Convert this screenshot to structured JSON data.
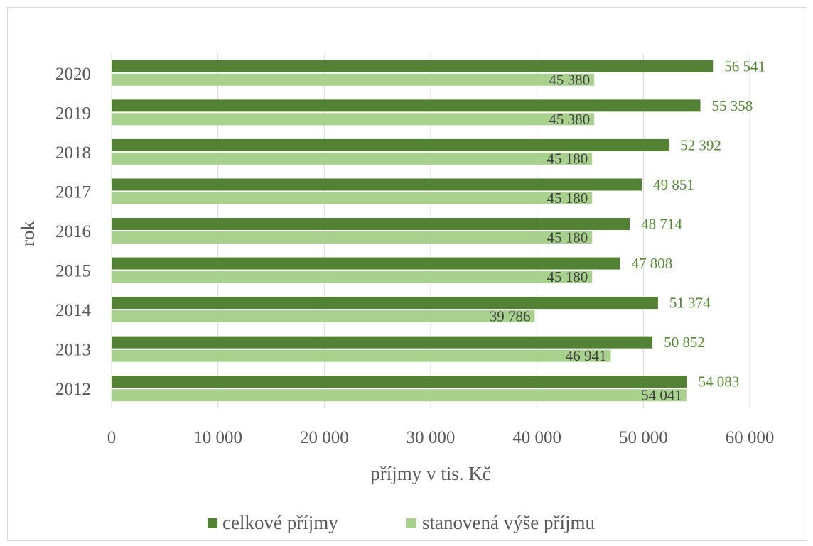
{
  "chart_data": {
    "type": "bar",
    "orientation": "horizontal",
    "categories": [
      "2020",
      "2019",
      "2018",
      "2017",
      "2016",
      "2015",
      "2014",
      "2013",
      "2012"
    ],
    "series": [
      {
        "name": "celkové příjmy",
        "color": "#548235",
        "values": [
          56541,
          55358,
          52392,
          49851,
          48714,
          47808,
          51374,
          50852,
          54083
        ],
        "labels": [
          "56 541",
          "55 358",
          "52 392",
          "49 851",
          "48 714",
          "47 808",
          "51 374",
          "50 852",
          "54 083"
        ]
      },
      {
        "name": "stanovená výše příjmu",
        "color": "#a9d18e",
        "values": [
          45380,
          45380,
          45180,
          45180,
          45180,
          45180,
          39786,
          46941,
          54041
        ],
        "labels": [
          "45 380",
          "45 380",
          "45 180",
          "45 180",
          "45 180",
          "45 180",
          "39 786",
          "46 941",
          "54 041"
        ]
      }
    ],
    "xlabel": "příjmy v tis. Kč",
    "ylabel": "rok",
    "xlim": [
      0,
      60000
    ],
    "xticks": [
      0,
      10000,
      20000,
      30000,
      40000,
      50000,
      60000
    ],
    "xtick_labels": [
      "0",
      "10 000",
      "20 000",
      "30 000",
      "40 000",
      "50 000",
      "60 000"
    ],
    "grid": "vertical",
    "legend_position": "bottom"
  }
}
